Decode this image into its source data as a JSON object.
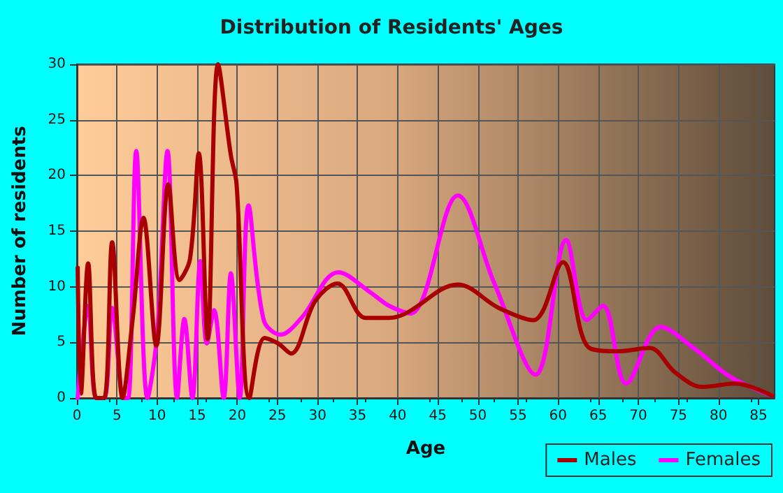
{
  "chart_data": {
    "type": "line",
    "title": "Distribution of Residents' Ages",
    "xlabel": "Age",
    "ylabel": "Number of residents",
    "xlim": [
      0,
      87
    ],
    "xticks": [
      0,
      5,
      10,
      15,
      20,
      25,
      30,
      35,
      40,
      45,
      50,
      55,
      60,
      65,
      70,
      75,
      80,
      85
    ],
    "ylim": [
      0,
      30
    ],
    "yticks": [
      0,
      5,
      10,
      15,
      20,
      25,
      30
    ],
    "grid": true,
    "legend": "bottom right",
    "marker": "none",
    "line_style": "solid",
    "series": [
      {
        "name": "Males",
        "color": "#a80000",
        "x": [
          0.1,
          0.5,
          1.4,
          2.4,
          3.4,
          4.4,
          5.7,
          7.0,
          8.3,
          9.9,
          11.4,
          12.8,
          14.1,
          15.2,
          16.3,
          17.6,
          19.2,
          19.9,
          21.5,
          23.4,
          25.1,
          26.7,
          29.7,
          32.5,
          36,
          38.9,
          41,
          47.5,
          52.6,
          56.9,
          60.6,
          63.9,
          67.6,
          71.4,
          74.6,
          78,
          82.1,
          86.7
        ],
        "values": [
          11.7,
          0.4,
          12.1,
          0,
          0,
          14,
          0,
          7.4,
          16.2,
          4.7,
          19.2,
          10.6,
          12.5,
          22,
          5.3,
          30,
          21.8,
          19.3,
          0,
          5.4,
          4.9,
          4.0,
          8.7,
          10.3,
          7.2,
          7.2,
          7.6,
          10.2,
          8.1,
          7.0,
          12.2,
          4.5,
          4.2,
          4.5,
          2.3,
          1.0,
          1.3,
          0.2
        ]
      },
      {
        "name": "Females",
        "color": "#ff00ff",
        "x": [
          0.1,
          1.4,
          2.4,
          3.4,
          4.4,
          5.9,
          6.4,
          7.4,
          8.8,
          10,
          11.3,
          12.5,
          13.4,
          14.4,
          15.4,
          16.2,
          17.1,
          18.3,
          19.2,
          20.3,
          21.4,
          23.3,
          25.4,
          28,
          32.6,
          36.6,
          38.9,
          41.6,
          47.5,
          52,
          57.2,
          61,
          63.6,
          65.6,
          68.5,
          72.8,
          76.9,
          81.5,
          86.7
        ],
        "values": [
          0,
          8.3,
          0,
          0,
          8.1,
          0,
          0,
          22.2,
          0,
          5.7,
          22.2,
          0,
          7.1,
          0,
          12.3,
          4.9,
          7.9,
          0,
          11.2,
          0,
          17.3,
          7,
          5.7,
          7.2,
          11.3,
          9.5,
          8.3,
          7.6,
          18.2,
          10.4,
          2.1,
          14.2,
          7,
          8.3,
          1.3,
          6.4,
          4.5,
          1.9,
          0.2
        ]
      }
    ]
  }
}
